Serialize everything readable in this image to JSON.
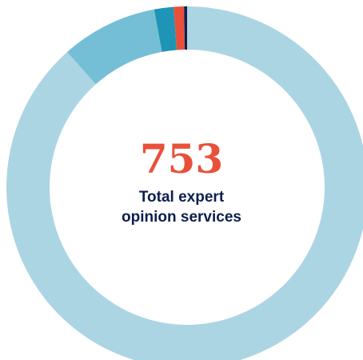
{
  "chart_data": {
    "type": "pie",
    "donut": true,
    "title": "",
    "center": {
      "total": "753",
      "caption_line1": "Total expert",
      "caption_line2": "opinion services"
    },
    "slices": [
      {
        "value": 666,
        "color": "#acd5e4"
      },
      {
        "value": 65,
        "color": "#74bfd6"
      },
      {
        "value": 13,
        "color": "#1f95b5"
      },
      {
        "value": 7,
        "color": "#e8503a"
      },
      {
        "value": 2,
        "color": "#0d1f4f"
      }
    ],
    "start_angle_deg": 0,
    "direction": "clockwise",
    "legend": "none"
  },
  "colors": {
    "total_number": "#e8503a",
    "caption_text": "#0d1f4f",
    "background": "#ffffff"
  }
}
